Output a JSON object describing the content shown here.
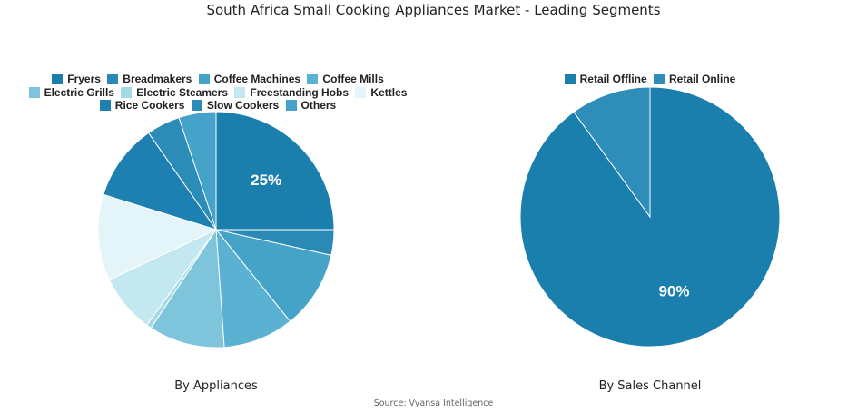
{
  "title": "South Africa Small Cooking Appliances Market - Leading Segments",
  "source": "Source: Vyansa Intelligence",
  "chart_data": [
    {
      "type": "pie",
      "caption": "By Appliances",
      "legend_position": "top",
      "slices": [
        {
          "label": "Fryers",
          "value": 25,
          "color": "#1b7fae",
          "data_label": "25%"
        },
        {
          "label": "Breadmakers",
          "value": 3.5,
          "color": "#2a8ab5"
        },
        {
          "label": "Coffee Machines",
          "value": 10.7,
          "color": "#46a3c8"
        },
        {
          "label": "Coffee Mills",
          "value": 9.7,
          "color": "#5bb1d1"
        },
        {
          "label": "Electric Grills",
          "value": 10.4,
          "color": "#7ec5dc"
        },
        {
          "label": "Electric Steamers",
          "value": 0.7,
          "color": "#a4d9e6"
        },
        {
          "label": "Freestanding Hobs",
          "value": 8,
          "color": "#c4e8ef"
        },
        {
          "label": "Kettles",
          "value": 11.8,
          "color": "#e4f5f9"
        },
        {
          "label": "Rice Cookers",
          "value": 10.5,
          "color": "#1e80b0"
        },
        {
          "label": "Slow Cookers",
          "value": 4.6,
          "color": "#2c8cb8"
        },
        {
          "label": "Others",
          "value": 5.1,
          "color": "#45a2c8"
        }
      ]
    },
    {
      "type": "pie",
      "caption": "By Sales Channel",
      "legend_position": "top",
      "slices": [
        {
          "label": "Retail Offline",
          "value": 90,
          "color": "#1b7fae",
          "data_label": "90%"
        },
        {
          "label": "Retail Online",
          "value": 10,
          "color": "#2e8db9"
        }
      ]
    }
  ]
}
